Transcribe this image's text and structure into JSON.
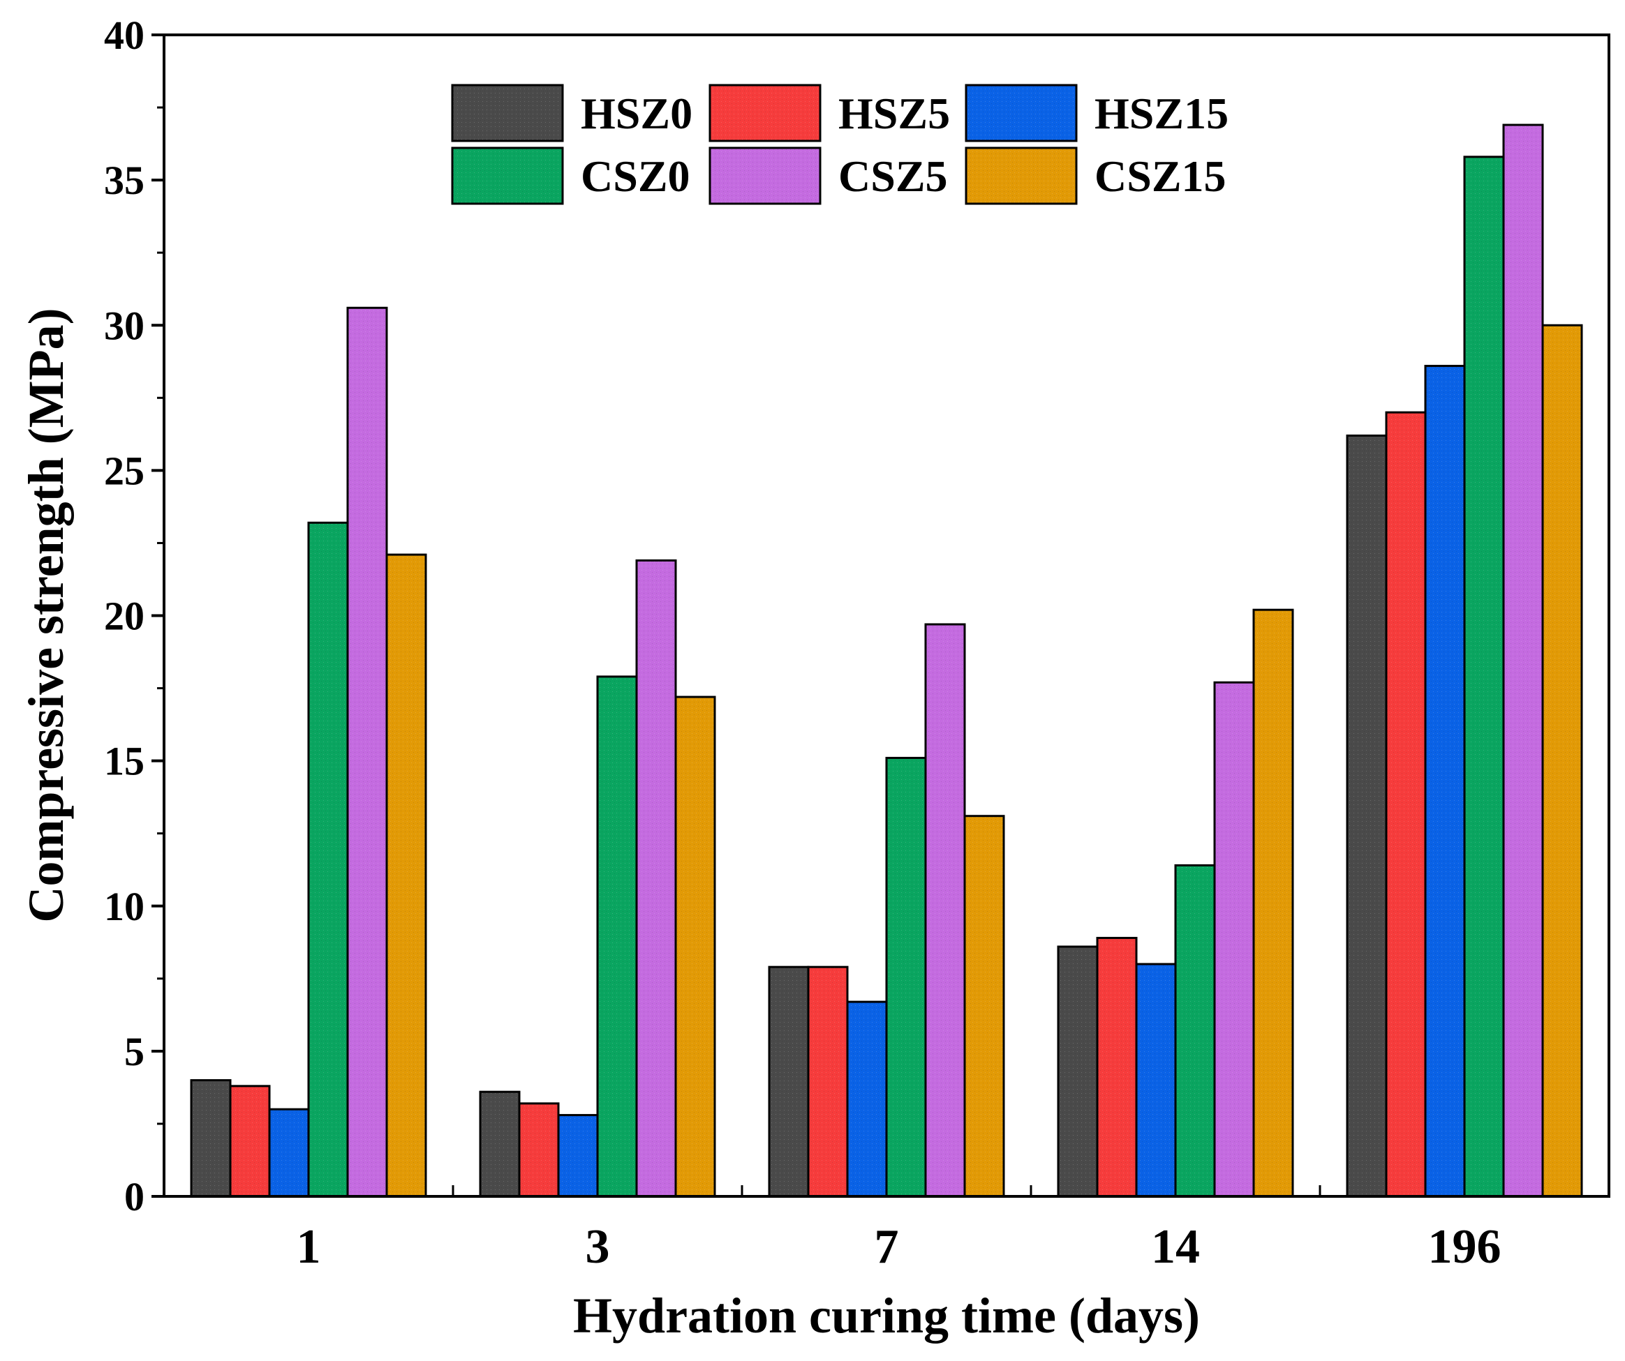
{
  "chart_data": {
    "type": "bar",
    "title": "",
    "xlabel": "Hydration curing time (days)",
    "ylabel": "Compressive strength (MPa)",
    "categories": [
      "1",
      "3",
      "7",
      "14",
      "196"
    ],
    "ylim": [
      0,
      40
    ],
    "yticks": [
      "0",
      "5",
      "10",
      "15",
      "20",
      "25",
      "30",
      "35",
      "40"
    ],
    "grid": false,
    "legend_position": "top-center",
    "series": [
      {
        "name": "HSZ0",
        "color": "#4a4a4a",
        "values": [
          4.0,
          3.6,
          7.9,
          8.6,
          26.2
        ]
      },
      {
        "name": "HSZ5",
        "color": "#f63c3c",
        "values": [
          3.8,
          3.2,
          7.9,
          8.9,
          27.0
        ]
      },
      {
        "name": "HSZ15",
        "color": "#0a62e6",
        "values": [
          3.0,
          2.8,
          6.7,
          8.0,
          28.6
        ]
      },
      {
        "name": "CSZ0",
        "color": "#0aa560",
        "values": [
          23.2,
          17.9,
          15.1,
          11.4,
          35.8
        ]
      },
      {
        "name": "CSZ5",
        "color": "#c46be0",
        "values": [
          30.6,
          21.9,
          19.7,
          17.7,
          36.9
        ]
      },
      {
        "name": "CSZ15",
        "color": "#e29a06",
        "values": [
          22.1,
          17.2,
          13.1,
          20.2,
          30.0
        ]
      }
    ]
  }
}
